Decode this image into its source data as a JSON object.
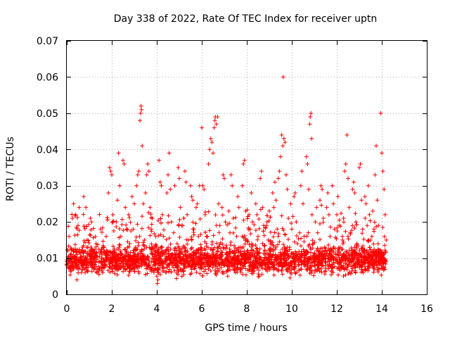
{
  "chart_data": {
    "type": "scatter",
    "title": "Day 338 of 2022, Rate Of TEC Index for receiver uptn",
    "xlabel": "GPS time / hours",
    "ylabel": "ROTI / TECUs",
    "xlim": [
      0,
      16
    ],
    "ylim": [
      0,
      0.07
    ],
    "x_ticks": [
      "0",
      "2",
      "4",
      "6",
      "8",
      "10",
      "12",
      "14",
      "16"
    ],
    "y_ticks": [
      "0",
      "0.01",
      "0.02",
      "0.03",
      "0.04",
      "0.05",
      "0.06",
      "0.07"
    ],
    "x_tick_values": [
      0,
      2,
      4,
      6,
      8,
      10,
      12,
      14,
      16
    ],
    "y_tick_values": [
      0,
      0.01,
      0.02,
      0.03,
      0.04,
      0.05,
      0.06,
      0.07
    ],
    "grid": true,
    "marker": "+",
    "color": "#ff0000",
    "series": [
      {
        "name": "ROTI",
        "points": [
          [
            0.0,
            0.009
          ],
          [
            0.05,
            0.012
          ],
          [
            0.1,
            0.016
          ],
          [
            0.15,
            0.007
          ],
          [
            0.2,
            0.011
          ],
          [
            0.25,
            0.021
          ],
          [
            0.3,
            0.025
          ],
          [
            0.35,
            0.008
          ],
          [
            0.4,
            0.022
          ],
          [
            0.45,
            0.004
          ],
          [
            0.5,
            0.019
          ],
          [
            0.55,
            0.024
          ],
          [
            0.6,
            0.01
          ],
          [
            0.65,
            0.006
          ],
          [
            0.7,
            0.013
          ],
          [
            0.75,
            0.027
          ],
          [
            0.8,
            0.009
          ],
          [
            0.85,
            0.024
          ],
          [
            0.9,
            0.015
          ],
          [
            0.95,
            0.008
          ],
          [
            1.0,
            0.011
          ],
          [
            1.05,
            0.021
          ],
          [
            1.1,
            0.02
          ],
          [
            1.15,
            0.012
          ],
          [
            1.2,
            0.007
          ],
          [
            1.3,
            0.014
          ],
          [
            1.4,
            0.009
          ],
          [
            1.5,
            0.018
          ],
          [
            1.55,
            0.01
          ],
          [
            1.6,
            0.006
          ],
          [
            1.65,
            0.013
          ],
          [
            1.7,
            0.009
          ],
          [
            1.75,
            0.016
          ],
          [
            1.8,
            0.011
          ],
          [
            1.85,
            0.028
          ],
          [
            1.9,
            0.035
          ],
          [
            1.95,
            0.034
          ],
          [
            2.0,
            0.033
          ],
          [
            2.05,
            0.022
          ],
          [
            2.1,
            0.012
          ],
          [
            2.15,
            0.007
          ],
          [
            2.2,
            0.02
          ],
          [
            2.25,
            0.026
          ],
          [
            2.3,
            0.039
          ],
          [
            2.35,
            0.03
          ],
          [
            2.4,
            0.016
          ],
          [
            2.45,
            0.011
          ],
          [
            2.5,
            0.037
          ],
          [
            2.55,
            0.036
          ],
          [
            2.6,
            0.024
          ],
          [
            2.65,
            0.018
          ],
          [
            2.7,
            0.009
          ],
          [
            2.75,
            0.022
          ],
          [
            2.8,
            0.014
          ],
          [
            2.85,
            0.01
          ],
          [
            2.9,
            0.027
          ],
          [
            2.95,
            0.018
          ],
          [
            3.0,
            0.025
          ],
          [
            3.05,
            0.013
          ],
          [
            3.1,
            0.03
          ],
          [
            3.15,
            0.033
          ],
          [
            3.2,
            0.034
          ],
          [
            3.25,
            0.048
          ],
          [
            3.28,
            0.05
          ],
          [
            3.3,
            0.052
          ],
          [
            3.32,
            0.051
          ],
          [
            3.35,
            0.041
          ],
          [
            3.4,
            0.025
          ],
          [
            3.45,
            0.015
          ],
          [
            3.5,
            0.028
          ],
          [
            3.55,
            0.033
          ],
          [
            3.6,
            0.036
          ],
          [
            3.65,
            0.034
          ],
          [
            3.7,
            0.024
          ],
          [
            3.75,
            0.018
          ],
          [
            3.8,
            0.021
          ],
          [
            3.85,
            0.013
          ],
          [
            3.9,
            0.009
          ],
          [
            3.95,
            0.016
          ],
          [
            4.0,
            0.005
          ],
          [
            4.02,
            0.003
          ],
          [
            4.05,
            0.004
          ],
          [
            4.08,
            0.006
          ],
          [
            4.1,
            0.037
          ],
          [
            4.15,
            0.031
          ],
          [
            4.2,
            0.03
          ],
          [
            4.25,
            0.022
          ],
          [
            4.3,
            0.016
          ],
          [
            4.35,
            0.009
          ],
          [
            4.4,
            0.012
          ],
          [
            4.45,
            0.028
          ],
          [
            4.5,
            0.033
          ],
          [
            4.55,
            0.039
          ],
          [
            4.6,
            0.029
          ],
          [
            4.65,
            0.02
          ],
          [
            4.7,
            0.011
          ],
          [
            4.75,
            0.017
          ],
          [
            4.8,
            0.03
          ],
          [
            4.85,
            0.008
          ],
          [
            4.9,
            0.014
          ],
          [
            4.95,
            0.035
          ],
          [
            5.0,
            0.032
          ],
          [
            5.05,
            0.024
          ],
          [
            5.1,
            0.019
          ],
          [
            5.15,
            0.01
          ],
          [
            5.2,
            0.013
          ],
          [
            5.25,
            0.034
          ],
          [
            5.3,
            0.031
          ],
          [
            5.35,
            0.022
          ],
          [
            5.4,
            0.015
          ],
          [
            5.45,
            0.009
          ],
          [
            5.5,
            0.03
          ],
          [
            5.55,
            0.027
          ],
          [
            5.6,
            0.026
          ],
          [
            5.65,
            0.018
          ],
          [
            5.7,
            0.011
          ],
          [
            5.75,
            0.024
          ],
          [
            5.8,
            0.025
          ],
          [
            5.85,
            0.016
          ],
          [
            5.9,
            0.03
          ],
          [
            5.95,
            0.01
          ],
          [
            6.0,
            0.046
          ],
          [
            6.05,
            0.03
          ],
          [
            6.1,
            0.029
          ],
          [
            6.15,
            0.022
          ],
          [
            6.2,
            0.014
          ],
          [
            6.25,
            0.008
          ],
          [
            6.3,
            0.036
          ],
          [
            6.35,
            0.04
          ],
          [
            6.4,
            0.043
          ],
          [
            6.45,
            0.042
          ],
          [
            6.5,
            0.039
          ],
          [
            6.55,
            0.046
          ],
          [
            6.58,
            0.048
          ],
          [
            6.6,
            0.049
          ],
          [
            6.65,
            0.047
          ],
          [
            6.7,
            0.049
          ],
          [
            6.75,
            0.025
          ],
          [
            6.8,
            0.019
          ],
          [
            6.85,
            0.011
          ],
          [
            6.9,
            0.024
          ],
          [
            6.95,
            0.033
          ],
          [
            7.0,
            0.032
          ],
          [
            7.05,
            0.02
          ],
          [
            7.1,
            0.013
          ],
          [
            7.15,
            0.008
          ],
          [
            7.2,
            0.023
          ],
          [
            7.25,
            0.017
          ],
          [
            7.3,
            0.033
          ],
          [
            7.35,
            0.03
          ],
          [
            7.4,
            0.021
          ],
          [
            7.45,
            0.012
          ],
          [
            7.5,
            0.007
          ],
          [
            7.55,
            0.016
          ],
          [
            7.6,
            0.027
          ],
          [
            7.65,
            0.024
          ],
          [
            7.7,
            0.013
          ],
          [
            7.75,
            0.009
          ],
          [
            7.8,
            0.03
          ],
          [
            7.85,
            0.036
          ],
          [
            7.9,
            0.037
          ],
          [
            7.95,
            0.023
          ],
          [
            8.0,
            0.015
          ],
          [
            8.05,
            0.01
          ],
          [
            8.1,
            0.022
          ],
          [
            8.15,
            0.018
          ],
          [
            8.2,
            0.028
          ],
          [
            8.25,
            0.02
          ],
          [
            8.3,
            0.012
          ],
          [
            8.35,
            0.008
          ],
          [
            8.4,
            0.025
          ],
          [
            8.45,
            0.022
          ],
          [
            8.5,
            0.016
          ],
          [
            8.55,
            0.01
          ],
          [
            8.6,
            0.032
          ],
          [
            8.65,
            0.034
          ],
          [
            8.7,
            0.024
          ],
          [
            8.75,
            0.019
          ],
          [
            8.8,
            0.012
          ],
          [
            8.85,
            0.007
          ],
          [
            8.9,
            0.02
          ],
          [
            8.95,
            0.015
          ],
          [
            9.0,
            0.023
          ],
          [
            9.05,
            0.014
          ],
          [
            9.1,
            0.009
          ],
          [
            9.15,
            0.028
          ],
          [
            9.2,
            0.024
          ],
          [
            9.25,
            0.031
          ],
          [
            9.3,
            0.026
          ],
          [
            9.35,
            0.018
          ],
          [
            9.4,
            0.032
          ],
          [
            9.45,
            0.034
          ],
          [
            9.5,
            0.038
          ],
          [
            9.55,
            0.044
          ],
          [
            9.6,
            0.041
          ],
          [
            9.62,
            0.06
          ],
          [
            9.65,
            0.043
          ],
          [
            9.7,
            0.042
          ],
          [
            9.75,
            0.033
          ],
          [
            9.8,
            0.029
          ],
          [
            9.85,
            0.021
          ],
          [
            9.9,
            0.013
          ],
          [
            9.95,
            0.025
          ],
          [
            10.0,
            0.018
          ],
          [
            10.05,
            0.01
          ],
          [
            10.1,
            0.027
          ],
          [
            10.15,
            0.028
          ],
          [
            10.2,
            0.02
          ],
          [
            10.25,
            0.014
          ],
          [
            10.3,
            0.008
          ],
          [
            10.35,
            0.017
          ],
          [
            10.4,
            0.03
          ],
          [
            10.45,
            0.034
          ],
          [
            10.5,
            0.025
          ],
          [
            10.55,
            0.016
          ],
          [
            10.6,
            0.011
          ],
          [
            10.65,
            0.038
          ],
          [
            10.7,
            0.036
          ],
          [
            10.75,
            0.029
          ],
          [
            10.8,
            0.047
          ],
          [
            10.82,
            0.049
          ],
          [
            10.85,
            0.05
          ],
          [
            10.88,
            0.043
          ],
          [
            10.9,
            0.022
          ],
          [
            10.95,
            0.014
          ],
          [
            11.0,
            0.008
          ],
          [
            11.05,
            0.02
          ],
          [
            11.1,
            0.024
          ],
          [
            11.15,
            0.017
          ],
          [
            11.2,
            0.011
          ],
          [
            11.25,
            0.026
          ],
          [
            11.3,
            0.03
          ],
          [
            11.35,
            0.029
          ],
          [
            11.4,
            0.021
          ],
          [
            11.45,
            0.013
          ],
          [
            11.5,
            0.009
          ],
          [
            11.55,
            0.024
          ],
          [
            11.6,
            0.028
          ],
          [
            11.65,
            0.022
          ],
          [
            11.7,
            0.016
          ],
          [
            11.75,
            0.01
          ],
          [
            11.8,
            0.03
          ],
          [
            11.85,
            0.025
          ],
          [
            11.9,
            0.018
          ],
          [
            11.95,
            0.011
          ],
          [
            12.0,
            0.022
          ],
          [
            12.05,
            0.027
          ],
          [
            12.1,
            0.019
          ],
          [
            12.15,
            0.013
          ],
          [
            12.2,
            0.008
          ],
          [
            12.25,
            0.016
          ],
          [
            12.3,
            0.021
          ],
          [
            12.35,
            0.034
          ],
          [
            12.4,
            0.036
          ],
          [
            12.45,
            0.044
          ],
          [
            12.5,
            0.032
          ],
          [
            12.55,
            0.024
          ],
          [
            12.6,
            0.017
          ],
          [
            12.65,
            0.011
          ],
          [
            12.7,
            0.029
          ],
          [
            12.75,
            0.031
          ],
          [
            12.8,
            0.028
          ],
          [
            12.85,
            0.02
          ],
          [
            12.9,
            0.014
          ],
          [
            12.95,
            0.009
          ],
          [
            13.0,
            0.035
          ],
          [
            13.05,
            0.036
          ],
          [
            13.1,
            0.026
          ],
          [
            13.15,
            0.018
          ],
          [
            13.2,
            0.012
          ],
          [
            13.25,
            0.027
          ],
          [
            13.3,
            0.025
          ],
          [
            13.35,
            0.019
          ],
          [
            13.4,
            0.03
          ],
          [
            13.45,
            0.022
          ],
          [
            13.5,
            0.015
          ],
          [
            13.55,
            0.01
          ],
          [
            13.6,
            0.023
          ],
          [
            13.65,
            0.018
          ],
          [
            13.7,
            0.033
          ],
          [
            13.75,
            0.041
          ],
          [
            13.8,
            0.026
          ],
          [
            13.85,
            0.019
          ],
          [
            13.9,
            0.012
          ],
          [
            13.95,
            0.05
          ],
          [
            14.0,
            0.039
          ],
          [
            14.05,
            0.034
          ],
          [
            14.1,
            0.029
          ],
          [
            14.15,
            0.022
          ],
          [
            14.2,
            0.015
          ]
        ]
      }
    ],
    "dense_band": {
      "x_range": [
        0,
        14.2
      ],
      "y_mean": 0.0095,
      "y_spread": 0.0055,
      "y_min": 0.002,
      "count": 2800,
      "note": "dense cloud of points near the baseline"
    }
  }
}
